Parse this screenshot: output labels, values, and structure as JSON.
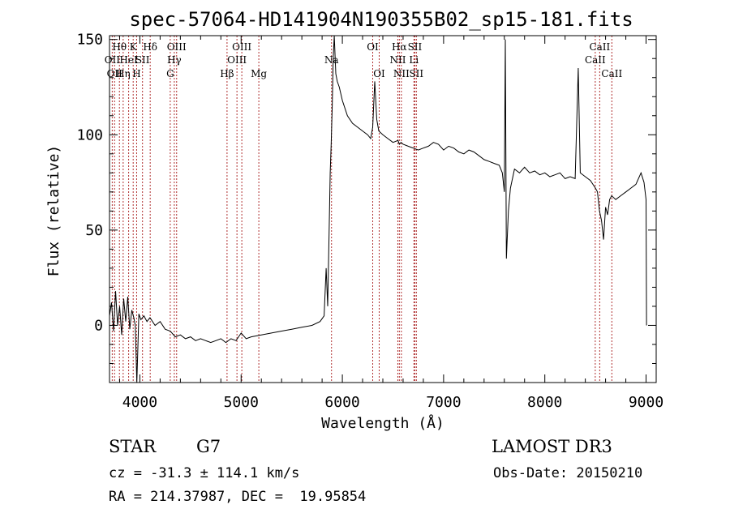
{
  "chart_data": {
    "type": "line",
    "title": "spec-57064-HD141904N190355B02_sp15-181.fits",
    "xlabel": "Wavelength (Å)",
    "ylabel": "Flux (relative)",
    "xlim": [
      3700,
      9100
    ],
    "ylim": [
      -30,
      152
    ],
    "xticks": [
      4000,
      5000,
      6000,
      7000,
      8000,
      9000
    ],
    "yticks": [
      0,
      50,
      100,
      150
    ],
    "grid": false,
    "series": [
      {
        "x": [
          3700,
          3720,
          3740,
          3760,
          3780,
          3800,
          3820,
          3840,
          3860,
          3880,
          3900,
          3920,
          3940,
          3955,
          3970,
          3990,
          4010,
          4040,
          4070,
          4100,
          4150,
          4200,
          4250,
          4300,
          4350,
          4400,
          4450,
          4500,
          4550,
          4600,
          4650,
          4700,
          4750,
          4800,
          4850,
          4900,
          4950,
          5000,
          5050,
          5100,
          5200,
          5300,
          5400,
          5500,
          5600,
          5700,
          5780,
          5820,
          5840,
          5855,
          5870,
          5880,
          5890,
          5900,
          5910,
          5920,
          5935,
          5950,
          5970,
          6000,
          6050,
          6100,
          6150,
          6200,
          6250,
          6280,
          6300,
          6320,
          6340,
          6360,
          6400,
          6450,
          6500,
          6550,
          6563,
          6580,
          6600,
          6650,
          6700,
          6750,
          6800,
          6850,
          6900,
          6950,
          7000,
          7050,
          7100,
          7150,
          7200,
          7250,
          7300,
          7350,
          7400,
          7450,
          7500,
          7550,
          7580,
          7600,
          7610,
          7620,
          7640,
          7660,
          7700,
          7750,
          7800,
          7850,
          7900,
          7950,
          8000,
          8050,
          8100,
          8150,
          8200,
          8250,
          8300,
          8330,
          8350,
          8400,
          8450,
          8500,
          8520,
          8540,
          8560,
          8580,
          8600,
          8620,
          8640,
          8660,
          8700,
          8750,
          8800,
          8850,
          8900,
          8950,
          8980,
          9000,
          9005
        ],
        "y": [
          5,
          12,
          -3,
          18,
          0,
          10,
          -5,
          14,
          2,
          15,
          -2,
          8,
          4,
          0,
          -30,
          6,
          3,
          5,
          2,
          4,
          0,
          2,
          -2,
          -3,
          -6,
          -5,
          -7,
          -6,
          -8,
          -7,
          -8,
          -9,
          -8,
          -7,
          -9,
          -7,
          -8,
          -4,
          -7,
          -6,
          -5,
          -4,
          -3,
          -2,
          -1,
          0,
          2,
          5,
          30,
          10,
          50,
          80,
          95,
          115,
          140,
          152,
          132,
          128,
          125,
          118,
          110,
          106,
          104,
          102,
          100,
          98,
          104,
          128,
          108,
          102,
          100,
          98,
          96,
          97,
          95,
          96,
          95,
          94,
          93,
          92,
          93,
          94,
          96,
          95,
          92,
          94,
          93,
          91,
          90,
          92,
          91,
          89,
          87,
          86,
          85,
          84,
          80,
          70,
          150,
          35,
          60,
          72,
          82,
          80,
          83,
          80,
          81,
          79,
          80,
          78,
          79,
          80,
          77,
          78,
          77,
          135,
          80,
          78,
          76,
          72,
          70,
          60,
          55,
          45,
          62,
          58,
          66,
          68,
          66,
          68,
          70,
          72,
          74,
          80,
          75,
          66,
          0
        ]
      }
    ],
    "lines": [
      {
        "wl": 3727,
        "label": "OII",
        "row": 2
      },
      {
        "wl": 3750,
        "label": "OII",
        "row": 3
      },
      {
        "wl": 3798,
        "label": "Hθ",
        "row": 1
      },
      {
        "wl": 3835,
        "label": "Hη",
        "row": 3
      },
      {
        "wl": 3889,
        "label": "HeI",
        "row": 2
      },
      {
        "wl": 3934,
        "label": "K",
        "row": 1
      },
      {
        "wl": 3968,
        "label": "H",
        "row": 3
      },
      {
        "wl": 4026,
        "label": "SII",
        "row": 2
      },
      {
        "wl": 4102,
        "label": "Hδ",
        "row": 1
      },
      {
        "wl": 4300,
        "label": "G",
        "row": 3
      },
      {
        "wl": 4340,
        "label": "Hγ",
        "row": 2
      },
      {
        "wl": 4363,
        "label": "OIII",
        "row": 1
      },
      {
        "wl": 4861,
        "label": "Hβ",
        "row": 3
      },
      {
        "wl": 4959,
        "label": "OIII",
        "row": 2
      },
      {
        "wl": 5007,
        "label": "OIII",
        "row": 1
      },
      {
        "wl": 5175,
        "label": "Mg",
        "row": 3
      },
      {
        "wl": 5893,
        "label": "Na",
        "row": 2
      },
      {
        "wl": 6300,
        "label": "OI",
        "row": 1
      },
      {
        "wl": 6364,
        "label": "OI",
        "row": 3
      },
      {
        "wl": 6548,
        "label": "NII",
        "row": 2
      },
      {
        "wl": 6563,
        "label": "Hα",
        "row": 1
      },
      {
        "wl": 6583,
        "label": "NII",
        "row": 3
      },
      {
        "wl": 6707,
        "label": "Li",
        "row": 2
      },
      {
        "wl": 6716,
        "label": "SII",
        "row": 1
      },
      {
        "wl": 6731,
        "label": "SII",
        "row": 3
      },
      {
        "wl": 8498,
        "label": "CaII",
        "row": 2
      },
      {
        "wl": 8542,
        "label": "CaII",
        "row": 1
      },
      {
        "wl": 8662,
        "label": "CaII",
        "row": 3
      }
    ],
    "line_color": "#b03030"
  },
  "info": {
    "class": "STAR",
    "subclass": "G7",
    "survey": "LAMOST DR3",
    "cz": "cz = -31.3 ± 114.1 km/s",
    "obs_date": "Obs-Date: 20150210",
    "radec": "RA = 214.37987, DEC =  19.95854"
  }
}
